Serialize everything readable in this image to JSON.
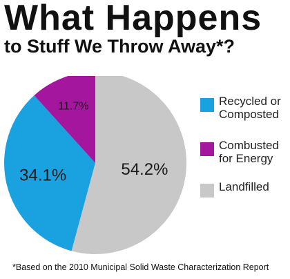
{
  "title": "What Happens",
  "subtitle": "to Stuff We Throw Away*?",
  "footnote": "*Based on the 2010 Municipal Solid Waste Characterization Report",
  "chart_data": {
    "type": "pie",
    "categories": [
      "Landfilled",
      "Recycled or Composted",
      "Combusted for Energy"
    ],
    "values": [
      54.2,
      34.1,
      11.7
    ],
    "data_labels": [
      "54.2%",
      "34.1%",
      "11.7%"
    ],
    "colors": [
      "#c8c8c8",
      "#1aa1e0",
      "#a4169e"
    ],
    "legend": [
      {
        "label": "Recycled or Composted",
        "color": "#1aa1e0"
      },
      {
        "label": "Combusted for Energy",
        "color": "#a4169e"
      },
      {
        "label": "Landfilled",
        "color": "#c8c8c8"
      }
    ],
    "legend_position": "right"
  }
}
